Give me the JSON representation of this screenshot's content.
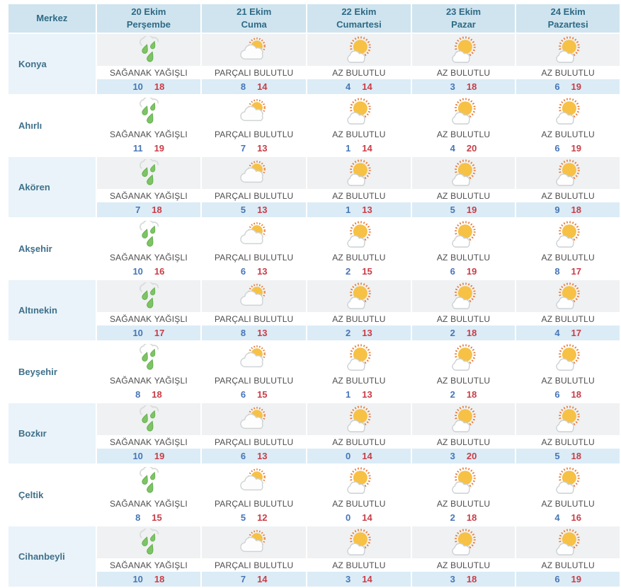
{
  "table": {
    "corner_label": "Merkez",
    "day_headers": [
      {
        "date": "20 Ekim",
        "day": "Perşembe"
      },
      {
        "date": "21 Ekim",
        "day": "Cuma"
      },
      {
        "date": "22 Ekim",
        "day": "Cumartesi"
      },
      {
        "date": "23 Ekim",
        "day": "Pazar"
      },
      {
        "date": "24 Ekim",
        "day": "Pazartesi"
      }
    ],
    "rows": [
      {
        "name": "Konya",
        "cells": [
          {
            "icon": "rain-icon",
            "condition": "SAĞANAK YAĞIŞLI",
            "min": 10,
            "max": 18
          },
          {
            "icon": "sun-behind-cloud-icon",
            "condition": "PARÇALI BULUTLU",
            "min": 8,
            "max": 14
          },
          {
            "icon": "sun-small-cloud-icon",
            "condition": "AZ BULUTLU",
            "min": 4,
            "max": 14
          },
          {
            "icon": "sun-small-cloud-icon",
            "condition": "AZ BULUTLU",
            "min": 3,
            "max": 18
          },
          {
            "icon": "sun-small-cloud-icon",
            "condition": "AZ BULUTLU",
            "min": 6,
            "max": 19
          }
        ]
      },
      {
        "name": "Ahırlı",
        "cells": [
          {
            "icon": "rain-icon",
            "condition": "SAĞANAK YAĞIŞLI",
            "min": 11,
            "max": 19
          },
          {
            "icon": "sun-behind-cloud-icon",
            "condition": "PARÇALI BULUTLU",
            "min": 7,
            "max": 13
          },
          {
            "icon": "sun-small-cloud-icon",
            "condition": "AZ BULUTLU",
            "min": 1,
            "max": 14
          },
          {
            "icon": "sun-small-cloud-icon",
            "condition": "AZ BULUTLU",
            "min": 4,
            "max": 20
          },
          {
            "icon": "sun-small-cloud-icon",
            "condition": "AZ BULUTLU",
            "min": 6,
            "max": 19
          }
        ]
      },
      {
        "name": "Akören",
        "cells": [
          {
            "icon": "rain-icon",
            "condition": "SAĞANAK YAĞIŞLI",
            "min": 7,
            "max": 18
          },
          {
            "icon": "sun-behind-cloud-icon",
            "condition": "PARÇALI BULUTLU",
            "min": 5,
            "max": 13
          },
          {
            "icon": "sun-small-cloud-icon",
            "condition": "AZ BULUTLU",
            "min": 1,
            "max": 13
          },
          {
            "icon": "sun-small-cloud-icon",
            "condition": "AZ BULUTLU",
            "min": 5,
            "max": 19
          },
          {
            "icon": "sun-small-cloud-icon",
            "condition": "AZ BULUTLU",
            "min": 9,
            "max": 18
          }
        ]
      },
      {
        "name": "Akşehir",
        "cells": [
          {
            "icon": "rain-icon",
            "condition": "SAĞANAK YAĞIŞLI",
            "min": 10,
            "max": 16
          },
          {
            "icon": "sun-behind-cloud-icon",
            "condition": "PARÇALI BULUTLU",
            "min": 6,
            "max": 13
          },
          {
            "icon": "sun-small-cloud-icon",
            "condition": "AZ BULUTLU",
            "min": 2,
            "max": 15
          },
          {
            "icon": "sun-small-cloud-icon",
            "condition": "AZ BULUTLU",
            "min": 6,
            "max": 19
          },
          {
            "icon": "sun-small-cloud-icon",
            "condition": "AZ BULUTLU",
            "min": 8,
            "max": 17
          }
        ]
      },
      {
        "name": "Altınekin",
        "cells": [
          {
            "icon": "rain-icon",
            "condition": "SAĞANAK YAĞIŞLI",
            "min": 10,
            "max": 17
          },
          {
            "icon": "sun-behind-cloud-icon",
            "condition": "PARÇALI BULUTLU",
            "min": 8,
            "max": 13
          },
          {
            "icon": "sun-small-cloud-icon",
            "condition": "AZ BULUTLU",
            "min": 2,
            "max": 13
          },
          {
            "icon": "sun-small-cloud-icon",
            "condition": "AZ BULUTLU",
            "min": 2,
            "max": 18
          },
          {
            "icon": "sun-small-cloud-icon",
            "condition": "AZ BULUTLU",
            "min": 4,
            "max": 17
          }
        ]
      },
      {
        "name": "Beyşehir",
        "cells": [
          {
            "icon": "rain-icon",
            "condition": "SAĞANAK YAĞIŞLI",
            "min": 8,
            "max": 18
          },
          {
            "icon": "sun-behind-cloud-icon",
            "condition": "PARÇALI BULUTLU",
            "min": 6,
            "max": 15
          },
          {
            "icon": "sun-small-cloud-icon",
            "condition": "AZ BULUTLU",
            "min": 1,
            "max": 13
          },
          {
            "icon": "sun-small-cloud-icon",
            "condition": "AZ BULUTLU",
            "min": 2,
            "max": 18
          },
          {
            "icon": "sun-small-cloud-icon",
            "condition": "AZ BULUTLU",
            "min": 6,
            "max": 18
          }
        ]
      },
      {
        "name": "Bozkır",
        "cells": [
          {
            "icon": "rain-icon",
            "condition": "SAĞANAK YAĞIŞLI",
            "min": 10,
            "max": 19
          },
          {
            "icon": "sun-behind-cloud-icon",
            "condition": "PARÇALI BULUTLU",
            "min": 6,
            "max": 13
          },
          {
            "icon": "sun-small-cloud-icon",
            "condition": "AZ BULUTLU",
            "min": 0,
            "max": 14
          },
          {
            "icon": "sun-small-cloud-icon",
            "condition": "AZ BULUTLU",
            "min": 3,
            "max": 20
          },
          {
            "icon": "sun-small-cloud-icon",
            "condition": "AZ BULUTLU",
            "min": 5,
            "max": 18
          }
        ]
      },
      {
        "name": "Çeltik",
        "cells": [
          {
            "icon": "rain-icon",
            "condition": "SAĞANAK YAĞIŞLI",
            "min": 8,
            "max": 15
          },
          {
            "icon": "sun-behind-cloud-icon",
            "condition": "PARÇALI BULUTLU",
            "min": 5,
            "max": 12
          },
          {
            "icon": "sun-small-cloud-icon",
            "condition": "AZ BULUTLU",
            "min": 0,
            "max": 14
          },
          {
            "icon": "sun-small-cloud-icon",
            "condition": "AZ BULUTLU",
            "min": 2,
            "max": 18
          },
          {
            "icon": "sun-small-cloud-icon",
            "condition": "AZ BULUTLU",
            "min": 4,
            "max": 16
          }
        ]
      },
      {
        "name": "Cihanbeyli",
        "cells": [
          {
            "icon": "rain-icon",
            "condition": "SAĞANAK YAĞIŞLI",
            "min": 10,
            "max": 18
          },
          {
            "icon": "sun-behind-cloud-icon",
            "condition": "PARÇALI BULUTLU",
            "min": 7,
            "max": 14
          },
          {
            "icon": "sun-small-cloud-icon",
            "condition": "AZ BULUTLU",
            "min": 3,
            "max": 14
          },
          {
            "icon": "sun-small-cloud-icon",
            "condition": "AZ BULUTLU",
            "min": 3,
            "max": 18
          },
          {
            "icon": "sun-small-cloud-icon",
            "condition": "AZ BULUTLU",
            "min": 6,
            "max": 19
          }
        ]
      }
    ]
  },
  "colors": {
    "header_bg": "#cfe4ee",
    "header_text": "#2e6a86",
    "name_cell_tint": "#e9f3f9",
    "icon_band_tint": "#eff1f2",
    "temp_band_tint": "#dbecf6",
    "min_temp": "#4776b7",
    "max_temp": "#c93d47",
    "condition_text": "#4d4d4d",
    "rain_green": "#7dc464",
    "sun_yellow": "#f6c145",
    "sun_ray_orange": "#e8732f"
  }
}
